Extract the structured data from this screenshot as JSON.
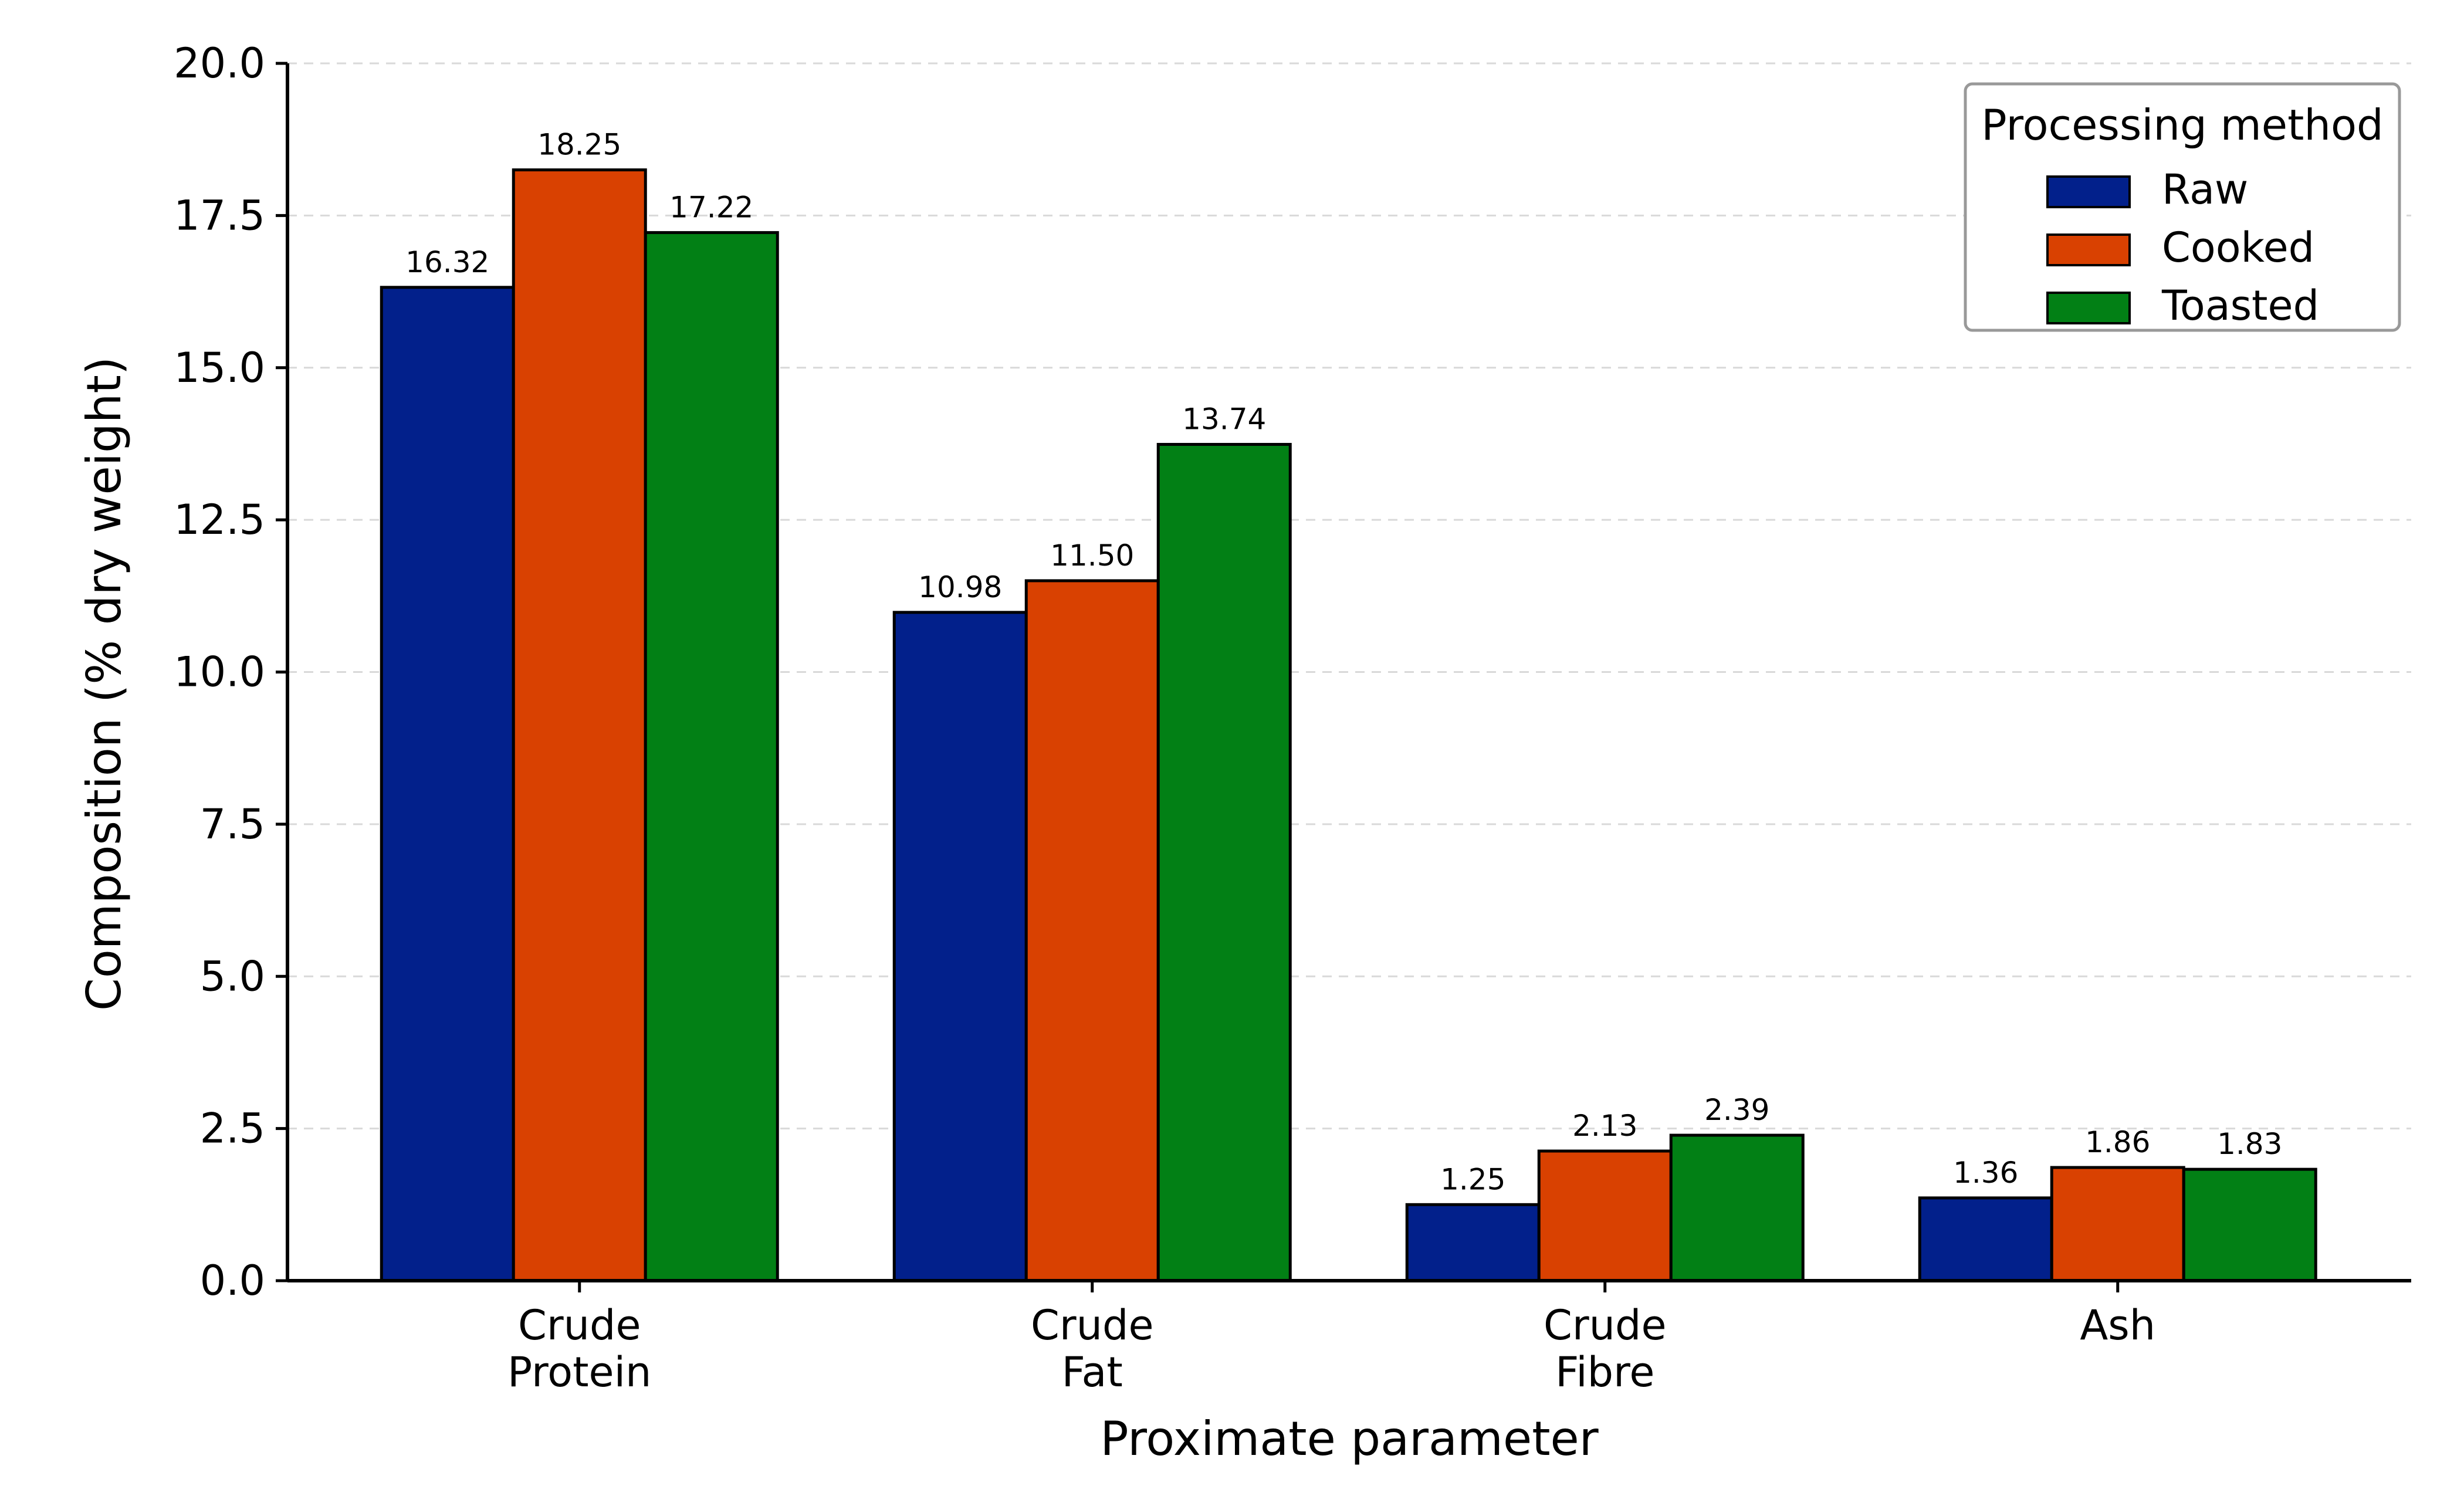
{
  "chart_data": {
    "type": "bar",
    "title": "",
    "xlabel": "Proximate parameter",
    "ylabel": "Composition (% dry weight)",
    "ylim": [
      0,
      20
    ],
    "yticks": [
      "0.0",
      "2.5",
      "5.0",
      "7.5",
      "10.0",
      "12.5",
      "15.0",
      "17.5",
      "20.0"
    ],
    "grid": "horizontal dashed",
    "legend": {
      "title": "Processing method",
      "placement": "top-right"
    },
    "categories": [
      [
        "Crude",
        "Protein"
      ],
      [
        "Crude",
        "Fat"
      ],
      [
        "Crude",
        "Fibre"
      ],
      [
        "Ash"
      ]
    ],
    "series": [
      {
        "name": "Raw",
        "color": "#02208b",
        "values": [
          16.32,
          10.98,
          1.25,
          1.36
        ],
        "labels": [
          "16.32",
          "10.98",
          "1.25",
          "1.36"
        ]
      },
      {
        "name": "Cooked",
        "color": "#d94101",
        "values": [
          18.25,
          11.5,
          2.13,
          1.86
        ],
        "labels": [
          "18.25",
          "11.50",
          "2.13",
          "1.86"
        ]
      },
      {
        "name": "Toasted",
        "color": "#028015",
        "values": [
          17.22,
          13.74,
          2.39,
          1.83
        ],
        "labels": [
          "17.22",
          "13.74",
          "2.39",
          "1.83"
        ]
      }
    ]
  }
}
